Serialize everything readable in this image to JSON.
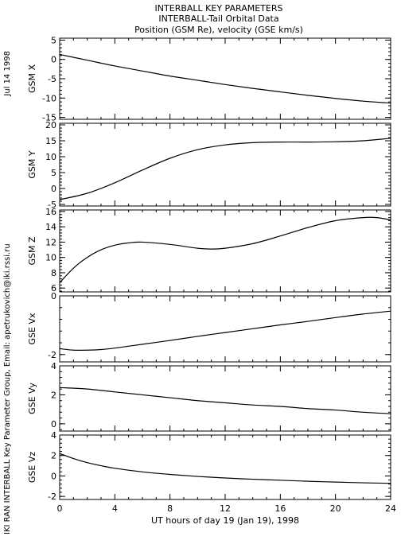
{
  "header": {
    "line1": "INTERBALL KEY PARAMETERS",
    "line2": "INTERBALL-Tail Orbital Data",
    "line3": "Position (GSM Re), velocity (GSE km/s)"
  },
  "side_text": {
    "date": "Jul 14 1998",
    "credit": "IKI RAN INTERBALL Key Parameter Group, Email: apetrukovich@iki.rssi.ru"
  },
  "x_axis": {
    "label": "UT hours of day  19 (Jan 19), 1998",
    "range": [
      0,
      24
    ],
    "ticks": [
      0,
      4,
      8,
      12,
      16,
      20,
      24
    ]
  },
  "chart_data": [
    {
      "type": "line",
      "ylabel": "GSM X",
      "ylim": [
        -15.5,
        5.5
      ],
      "yticks": [
        5,
        0,
        -5,
        -10,
        -15
      ],
      "x": [
        0,
        2,
        4,
        6,
        8,
        10,
        12,
        14,
        16,
        18,
        20,
        22,
        24
      ],
      "values": [
        1.3,
        -0.2,
        -1.7,
        -3.0,
        -4.3,
        -5.4,
        -6.5,
        -7.5,
        -8.4,
        -9.3,
        -10.1,
        -10.8,
        -11.3
      ]
    },
    {
      "type": "line",
      "ylabel": "GSM Y",
      "ylim": [
        -5.5,
        20.5
      ],
      "yticks": [
        20,
        15,
        10,
        5,
        0,
        -5
      ],
      "x": [
        0,
        2,
        4,
        6,
        8,
        10,
        12,
        14,
        16,
        18,
        20,
        22,
        24
      ],
      "values": [
        -3.5,
        -1.5,
        1.8,
        5.8,
        9.5,
        12.2,
        13.7,
        14.4,
        14.6,
        14.6,
        14.7,
        15.0,
        15.8
      ]
    },
    {
      "type": "line",
      "ylabel": "GSM Z",
      "ylim": [
        5.5,
        16.2
      ],
      "yticks": [
        16,
        14,
        12,
        10,
        8,
        6
      ],
      "x": [
        0,
        1,
        2,
        3,
        4,
        5,
        6,
        8,
        10,
        11,
        12,
        14,
        16,
        18,
        20,
        22,
        23,
        24
      ],
      "values": [
        6.7,
        8.6,
        10.0,
        11.0,
        11.6,
        11.9,
        12.0,
        11.7,
        11.2,
        11.1,
        11.2,
        11.8,
        12.8,
        13.9,
        14.8,
        15.2,
        15.2,
        14.9
      ]
    },
    {
      "type": "line",
      "ylabel": "GSE Vx",
      "ylim": [
        -2.25,
        0
      ],
      "yticks": [
        0,
        -2
      ],
      "x": [
        0,
        1,
        2,
        3,
        4,
        6,
        8,
        10,
        12,
        14,
        16,
        18,
        20,
        22,
        24
      ],
      "values": [
        -1.8,
        -1.85,
        -1.85,
        -1.83,
        -1.78,
        -1.65,
        -1.52,
        -1.38,
        -1.25,
        -1.12,
        -0.99,
        -0.87,
        -0.74,
        -0.62,
        -0.52
      ]
    },
    {
      "type": "line",
      "ylabel": "GSE Vy",
      "ylim": [
        -0.5,
        4
      ],
      "yticks": [
        4,
        2,
        0
      ],
      "x": [
        0,
        2,
        4,
        6,
        8,
        10,
        12,
        14,
        16,
        18,
        20,
        22,
        24
      ],
      "values": [
        2.5,
        2.4,
        2.2,
        2.0,
        1.8,
        1.6,
        1.45,
        1.3,
        1.2,
        1.05,
        0.95,
        0.8,
        0.7
      ]
    },
    {
      "type": "line",
      "ylabel": "GSE Vz",
      "ylim": [
        -2.3,
        4
      ],
      "yticks": [
        4,
        2,
        0,
        -2
      ],
      "x": [
        0,
        1,
        2,
        3,
        4,
        6,
        8,
        10,
        12,
        14,
        16,
        18,
        20,
        22,
        24
      ],
      "values": [
        2.2,
        1.7,
        1.3,
        1.0,
        0.75,
        0.4,
        0.15,
        -0.05,
        -0.2,
        -0.32,
        -0.42,
        -0.52,
        -0.6,
        -0.67,
        -0.72
      ]
    }
  ]
}
